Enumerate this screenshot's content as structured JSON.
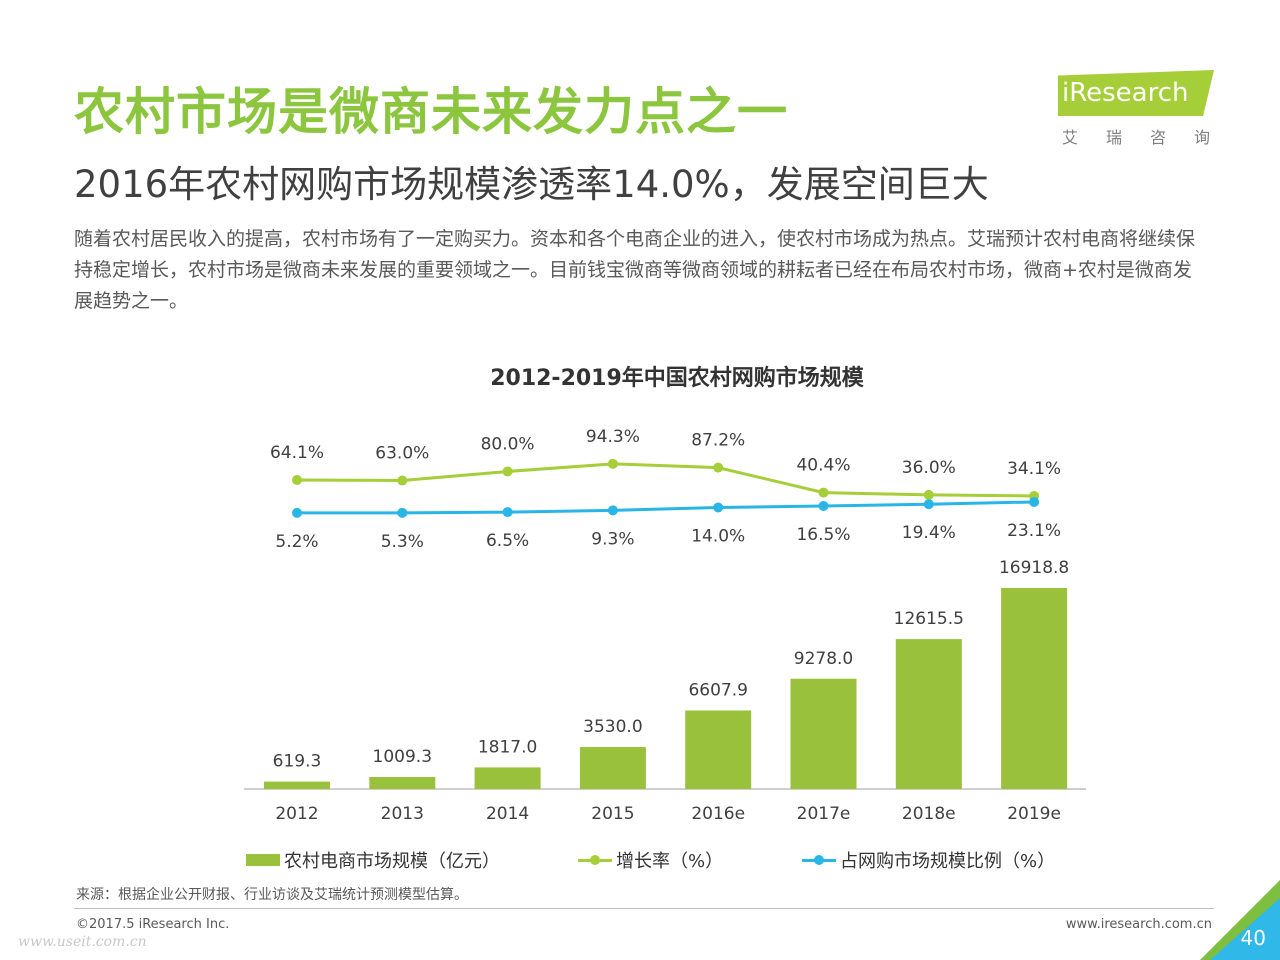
{
  "header": {
    "title": "农村市场是微商未来发力点之一",
    "subtitle": "2016年农村网购市场规模渗透率14.0%，发展空间巨大",
    "body": "随着农村居民收入的提高，农村市场有了一定购买力。资本和各个电商企业的进入，使农村市场成为热点。艾瑞预计农村电商将继续保持稳定增长，农村市场是微商未来发展的重要领域之一。目前钱宝微商等微商领域的耕耘者已经在布局农村市场，微商+农村是微商发展趋势之一。"
  },
  "logo": {
    "word": "iResearch",
    "sub": "艾瑞咨询",
    "icon": "iresearch-logo"
  },
  "chart_data": {
    "type": "bar",
    "title": "2012-2019年中国农村网购市场规模",
    "categories": [
      "2012",
      "2013",
      "2014",
      "2015",
      "2016e",
      "2017e",
      "2018e",
      "2019e"
    ],
    "series": [
      {
        "name": "农村电商市场规模（亿元）",
        "type": "bar",
        "color": "#99c13c",
        "values": [
          619.3,
          1009.3,
          1817.0,
          3530.0,
          6607.9,
          9278.0,
          12615.5,
          16918.8
        ],
        "labels": [
          "619.3",
          "1009.3",
          "1817.0",
          "3530.0",
          "6607.9",
          "9278.0",
          "12615.5",
          "16918.8"
        ]
      },
      {
        "name": "增长率（%）",
        "type": "line",
        "color": "#a6ce39",
        "values": [
          64.1,
          63.0,
          80.0,
          94.3,
          87.2,
          40.4,
          36.0,
          34.1
        ],
        "labels": [
          "64.1%",
          "63.0%",
          "80.0%",
          "94.3%",
          "87.2%",
          "40.4%",
          "36.0%",
          "34.1%"
        ]
      },
      {
        "name": "占网购市场规模比例（%）",
        "type": "line",
        "color": "#29b6e6",
        "values": [
          5.2,
          5.3,
          6.5,
          9.3,
          14.0,
          16.5,
          19.4,
          23.1
        ],
        "labels": [
          "5.2%",
          "5.3%",
          "6.5%",
          "9.3%",
          "14.0%",
          "16.5%",
          "19.4%",
          "23.1%"
        ]
      }
    ],
    "ylim": [
      0,
      17000
    ],
    "grid": false,
    "legend": "bottom"
  },
  "footer": {
    "source": "来源：根据企业公开财报、行业访谈及艾瑞统计预测模型估算。",
    "copyright": "©2017.5 iResearch Inc.",
    "website": "www.iresearch.com.cn",
    "page": "40",
    "watermark": "www.useit.com.cn"
  }
}
